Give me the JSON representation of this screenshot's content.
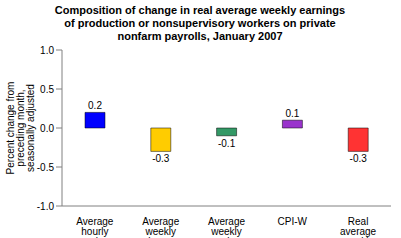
{
  "chart_data": {
    "type": "bar",
    "title": "Composition of change in real average weekly earnings of production or nonsupervisory workers on private nonfarm payrolls, January  2007",
    "y_label": "Percent change from preceding month, seasonally adjusted",
    "categories": [
      "Average hourly earnings",
      "Average weekly hours",
      "Average weekly earnings",
      "CPI-W",
      "Real average weekly earnings"
    ],
    "values": [
      0.2,
      -0.3,
      -0.1,
      0.1,
      -0.3
    ],
    "colors": [
      "#0000ff",
      "#ffcc00",
      "#339966",
      "#9933cc",
      "#ff3333"
    ],
    "ylim": [
      -1,
      1
    ],
    "yticks": [
      {
        "value": -1,
        "label": "-1.0"
      },
      -0.5,
      {
        "value": 0,
        "label": "0.0"
      },
      0.5,
      {
        "value": 1,
        "label": "1.0"
      }
    ],
    "grid": false,
    "data_labels": true
  }
}
